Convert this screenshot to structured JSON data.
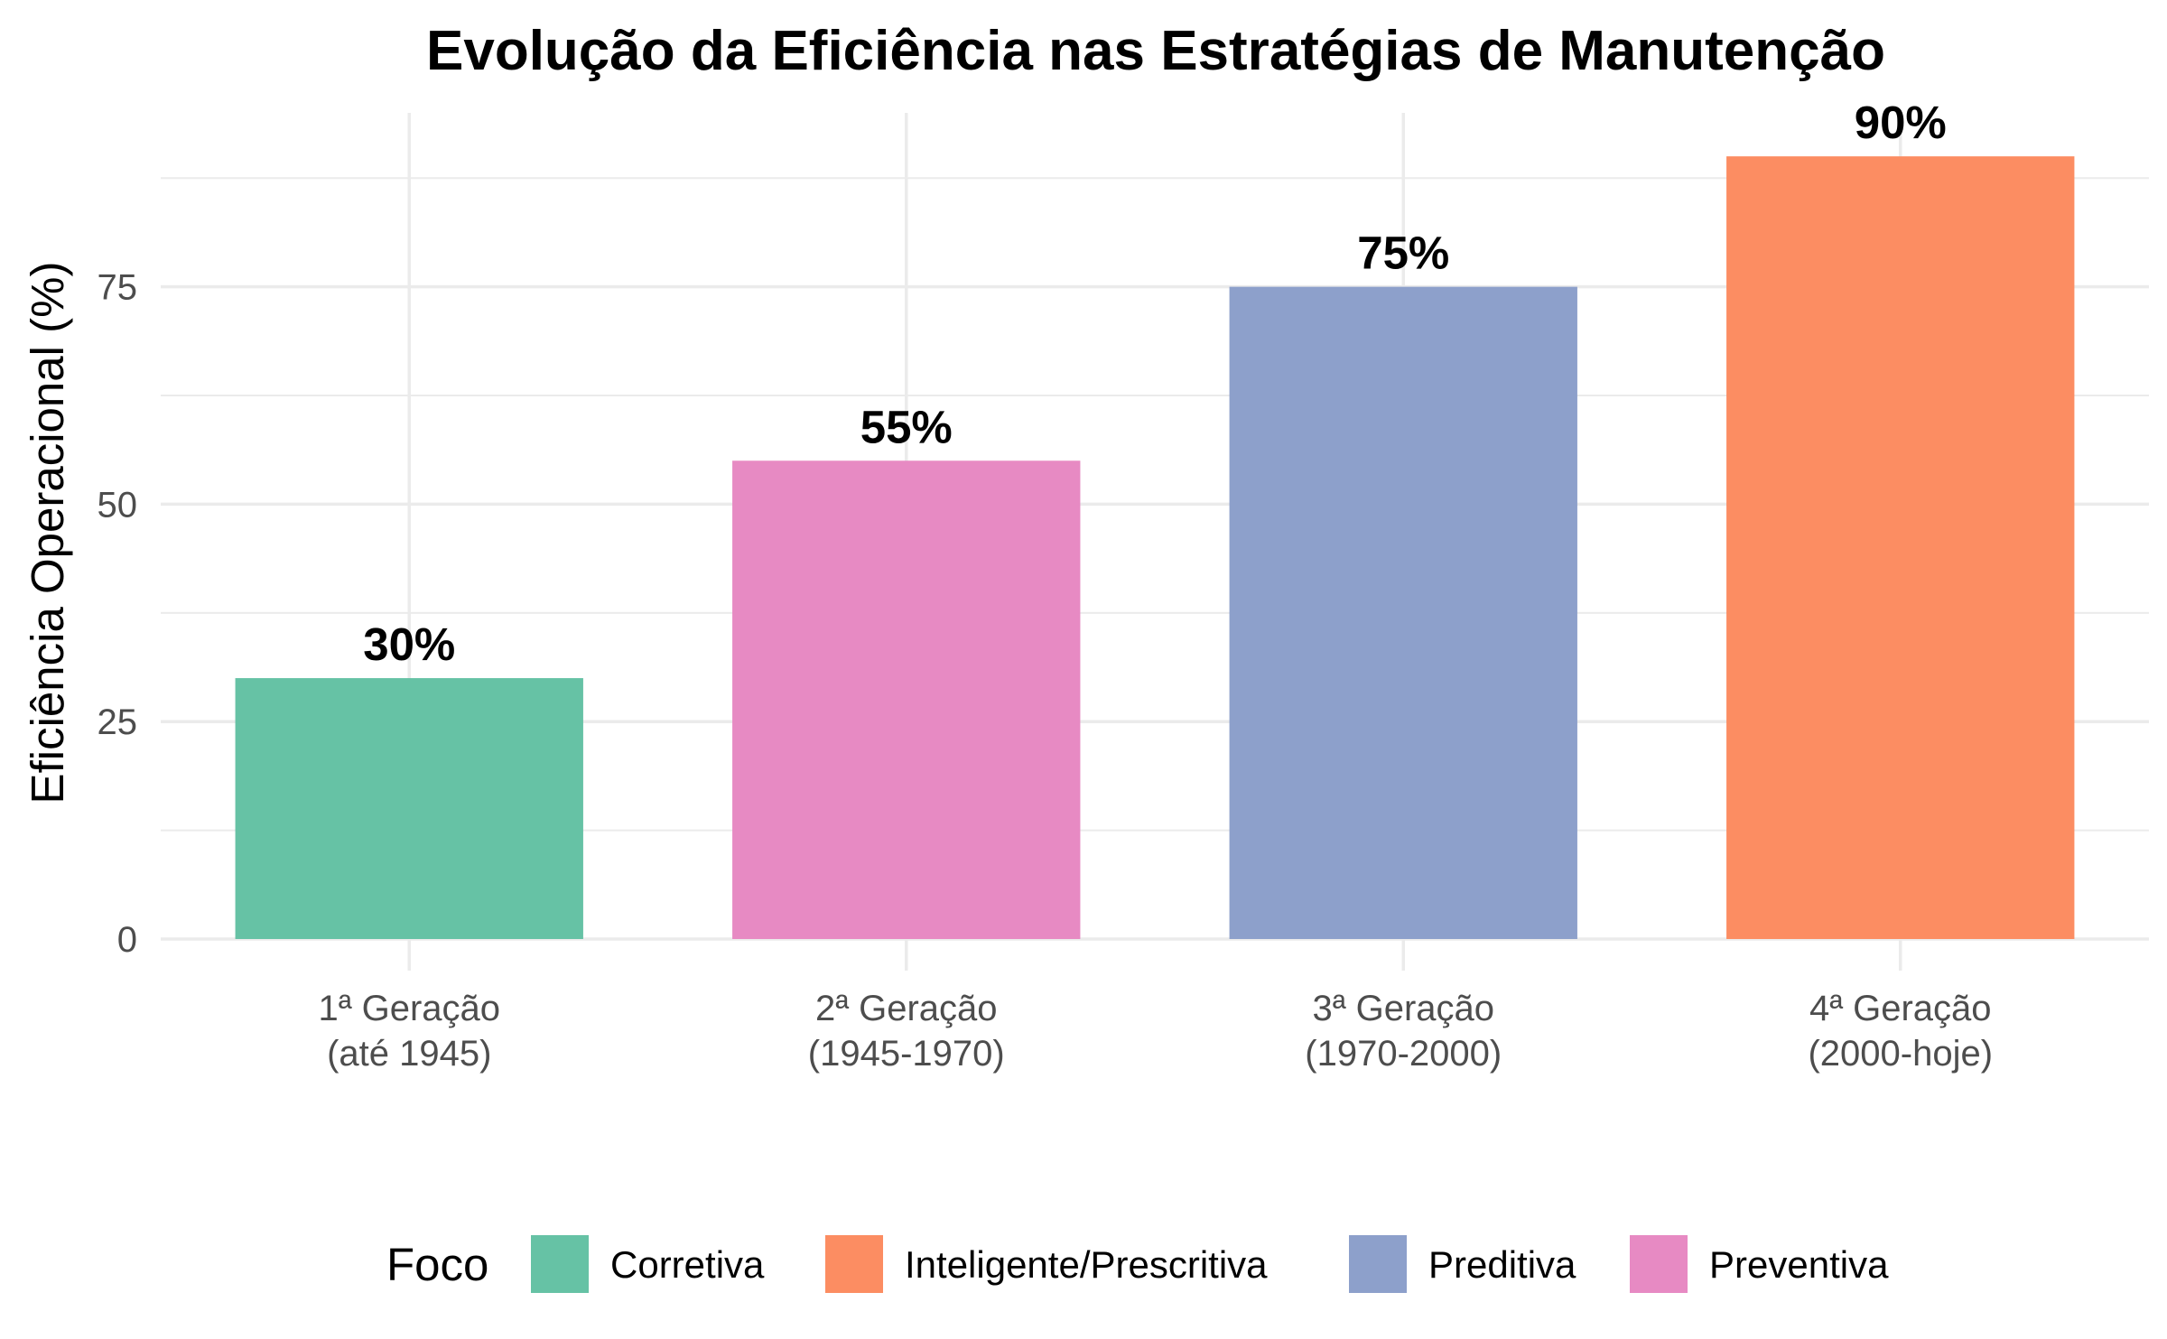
{
  "chart_data": {
    "type": "bar",
    "title": "Evolução da Eficiência nas Estratégias de Manutenção",
    "xlabel": "",
    "ylabel": "Eficiência Operacional (%)",
    "ylim": [
      0,
      95
    ],
    "yticks": [
      0,
      25,
      50,
      75
    ],
    "grid": true,
    "categories": [
      [
        "1ª Geração",
        "(até 1945)"
      ],
      [
        "2ª Geração",
        "(1945-1970)"
      ],
      [
        "3ª Geração",
        "(1970-2000)"
      ],
      [
        "4ª Geração",
        "(2000-hoje)"
      ]
    ],
    "values": [
      30,
      55,
      75,
      90
    ],
    "data_labels": [
      "30%",
      "55%",
      "75%",
      "90%"
    ],
    "fill_by": [
      "Corretiva",
      "Preventiva",
      "Preditiva",
      "Inteligente/Prescritiva"
    ],
    "legend": {
      "title": "Foco",
      "position": "bottom",
      "entries": [
        {
          "label": "Corretiva",
          "color": "#66c2a5"
        },
        {
          "label": "Inteligente/Prescritiva",
          "color": "#fc8d62"
        },
        {
          "label": "Preditiva",
          "color": "#8da0cb"
        },
        {
          "label": "Preventiva",
          "color": "#e78ac3"
        }
      ]
    }
  }
}
